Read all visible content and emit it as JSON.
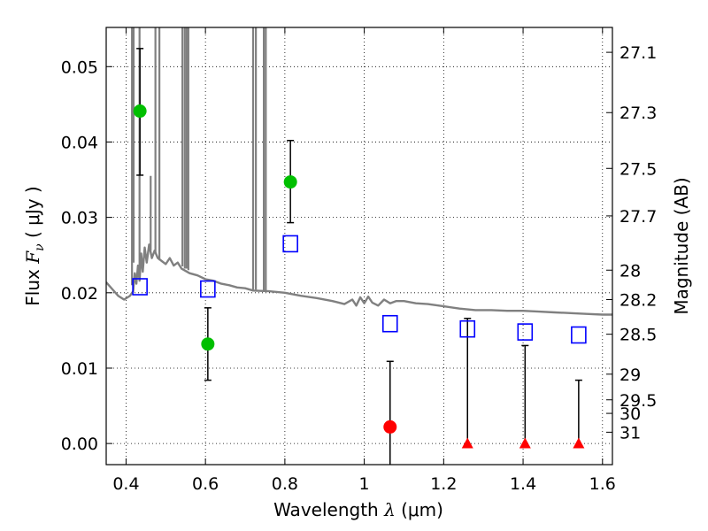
{
  "chart_data": {
    "type": "scatter",
    "xlabel": {
      "prefix": "Wavelength  ",
      "symbol": "λ",
      "unit": " (μm)"
    },
    "ylabel": {
      "prefix": "Flux  ",
      "symbol": "F",
      "subscript": "ν",
      "unit": "  ( μJy )"
    },
    "y2label": "Magnitude (AB)",
    "xlim": [
      0.35,
      1.625
    ],
    "ylim": [
      -0.0028,
      0.0552
    ],
    "grid": true,
    "x_ticks": [
      0.4,
      0.6,
      0.8,
      1.0,
      1.2,
      1.4,
      1.6
    ],
    "x_tick_labels": [
      "0.4",
      "0.6",
      "0.8",
      "1",
      "1.2",
      "1.4",
      "1.6"
    ],
    "y_ticks": [
      0.0,
      0.01,
      0.02,
      0.03,
      0.04,
      0.05
    ],
    "y_tick_labels": [
      "0.00",
      "0.01",
      "0.02",
      "0.03",
      "0.04",
      "0.05"
    ],
    "y2_ticks": [
      {
        "label": "27.1",
        "flux": 0.0519
      },
      {
        "label": "27.3",
        "flux": 0.0439
      },
      {
        "label": "27.5",
        "flux": 0.0365
      },
      {
        "label": "27.7",
        "flux": 0.0302
      },
      {
        "label": "28",
        "flux": 0.023
      },
      {
        "label": "28.2",
        "flux": 0.0191
      },
      {
        "label": "28.5",
        "flux": 0.0145
      },
      {
        "label": "29",
        "flux": 0.0092
      },
      {
        "label": "29.5",
        "flux": 0.0058
      },
      {
        "label": "30",
        "flux": 0.004
      },
      {
        "label": "31",
        "flux": 0.0015
      }
    ],
    "series": [
      {
        "marker": "circle",
        "color": "#00bf00",
        "points": [
          {
            "x": 0.435,
            "y": 0.0441,
            "ylo": 0.0356,
            "yhi": 0.0524
          },
          {
            "x": 0.606,
            "y": 0.0132,
            "ylo": 0.0084,
            "yhi": 0.018
          },
          {
            "x": 0.814,
            "y": 0.0347,
            "ylo": 0.0293,
            "yhi": 0.0402
          }
        ]
      },
      {
        "marker": "circle",
        "color": "#ff0000",
        "points": [
          {
            "x": 1.065,
            "y": 0.0022,
            "ylo": -0.0028,
            "yhi": 0.0109
          }
        ]
      },
      {
        "marker": "triangle",
        "color": "#ff0000",
        "points": [
          {
            "x": 1.26,
            "y": 0.0,
            "ylo": 0.0,
            "yhi": 0.0166
          },
          {
            "x": 1.405,
            "y": 0.0,
            "ylo": 0.0,
            "yhi": 0.013
          },
          {
            "x": 1.54,
            "y": 0.0,
            "ylo": 0.0,
            "yhi": 0.0084
          }
        ]
      },
      {
        "marker": "square-open",
        "color": "#0000ff",
        "points": [
          {
            "x": 0.435,
            "y": 0.0208
          },
          {
            "x": 0.606,
            "y": 0.0205
          },
          {
            "x": 0.814,
            "y": 0.0265
          },
          {
            "x": 1.065,
            "y": 0.0159
          },
          {
            "x": 1.26,
            "y": 0.0152
          },
          {
            "x": 1.405,
            "y": 0.0148
          },
          {
            "x": 1.54,
            "y": 0.0144
          }
        ]
      },
      {
        "marker": "line",
        "color": "#808080",
        "spectrum": [
          [
            0.35,
            0.0214
          ],
          [
            0.365,
            0.0205
          ],
          [
            0.38,
            0.0196
          ],
          [
            0.395,
            0.0191
          ],
          [
            0.41,
            0.0196
          ],
          [
            0.418,
            0.0202
          ],
          [
            0.422,
            0.0226
          ],
          [
            0.426,
            0.0212
          ],
          [
            0.43,
            0.0236
          ],
          [
            0.434,
            0.0216
          ],
          [
            0.438,
            0.0252
          ],
          [
            0.442,
            0.0228
          ],
          [
            0.447,
            0.026
          ],
          [
            0.452,
            0.024
          ],
          [
            0.458,
            0.0264
          ],
          [
            0.465,
            0.0246
          ],
          [
            0.472,
            0.0256
          ],
          [
            0.48,
            0.0246
          ],
          [
            0.49,
            0.0242
          ],
          [
            0.5,
            0.0238
          ],
          [
            0.51,
            0.0246
          ],
          [
            0.52,
            0.0236
          ],
          [
            0.53,
            0.024
          ],
          [
            0.54,
            0.0232
          ],
          [
            0.56,
            0.0226
          ],
          [
            0.58,
            0.0223
          ],
          [
            0.6,
            0.0218
          ],
          [
            0.62,
            0.0216
          ],
          [
            0.64,
            0.0212
          ],
          [
            0.66,
            0.021
          ],
          [
            0.68,
            0.0207
          ],
          [
            0.7,
            0.0206
          ],
          [
            0.72,
            0.0203
          ],
          [
            0.76,
            0.0202
          ],
          [
            0.8,
            0.02
          ],
          [
            0.84,
            0.0196
          ],
          [
            0.88,
            0.0193
          ],
          [
            0.92,
            0.0189
          ],
          [
            0.95,
            0.0185
          ],
          [
            0.97,
            0.0191
          ],
          [
            0.98,
            0.0183
          ],
          [
            0.99,
            0.0194
          ],
          [
            1.0,
            0.0186
          ],
          [
            1.01,
            0.0195
          ],
          [
            1.02,
            0.0187
          ],
          [
            1.035,
            0.0183
          ],
          [
            1.05,
            0.0191
          ],
          [
            1.065,
            0.0186
          ],
          [
            1.08,
            0.0189
          ],
          [
            1.1,
            0.0189
          ],
          [
            1.13,
            0.0186
          ],
          [
            1.16,
            0.0185
          ],
          [
            1.2,
            0.0182
          ],
          [
            1.24,
            0.0179
          ],
          [
            1.28,
            0.0177
          ],
          [
            1.32,
            0.0177
          ],
          [
            1.36,
            0.0176
          ],
          [
            1.4,
            0.0176
          ],
          [
            1.44,
            0.0175
          ],
          [
            1.48,
            0.0174
          ],
          [
            1.52,
            0.0173
          ],
          [
            1.56,
            0.0172
          ],
          [
            1.6,
            0.0171
          ],
          [
            1.625,
            0.0171
          ]
        ],
        "spikes": [
          [
            0.415,
            0.021
          ],
          [
            0.419,
            0.024
          ],
          [
            0.434,
            0.0232
          ],
          [
            0.474,
            0.0252
          ],
          [
            0.484,
            0.0243
          ],
          [
            0.542,
            0.0235
          ],
          [
            0.548,
            0.0232
          ],
          [
            0.553,
            0.0232
          ],
          [
            0.557,
            0.023
          ],
          [
            0.72,
            0.0204
          ],
          [
            0.727,
            0.0204
          ],
          [
            0.747,
            0.0203
          ],
          [
            0.752,
            0.0202
          ]
        ],
        "spike_top": 0.0552,
        "bump": {
          "x": 0.462,
          "from": 0.0256,
          "to": 0.0355
        }
      }
    ]
  }
}
